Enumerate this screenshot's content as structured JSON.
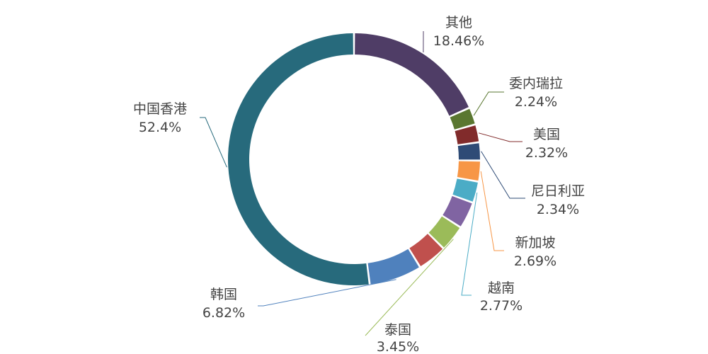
{
  "chart_data": {
    "type": "pie",
    "donut": true,
    "title": "",
    "start_angle_deg": 0,
    "direction": "clockwise",
    "slices": [
      {
        "label": "其他",
        "value": 18.46,
        "value_text": "18.46%",
        "color": "#4F3D66"
      },
      {
        "label": "委内瑞拉",
        "value": 2.24,
        "value_text": "2.24%",
        "color": "#5A7730"
      },
      {
        "label": "美国",
        "value": 2.32,
        "value_text": "2.32%",
        "color": "#812B2B"
      },
      {
        "label": "尼日利亚",
        "value": 2.34,
        "value_text": "2.34%",
        "color": "#2E4B76"
      },
      {
        "label": "新加坡",
        "value": 2.69,
        "value_text": "2.69%",
        "color": "#F79646"
      },
      {
        "label": "越南",
        "value": 2.77,
        "value_text": "2.77%",
        "color": "#4BACC6"
      },
      {
        "label": "",
        "value": 3.5,
        "value_text": "",
        "color": "#8064A2"
      },
      {
        "label": "泰国",
        "value": 3.45,
        "value_text": "3.45%",
        "color": "#9BBB59"
      },
      {
        "label": "",
        "value": 3.8,
        "value_text": "",
        "color": "#C0504D"
      },
      {
        "label": "韩国",
        "value": 6.82,
        "value_text": "6.82%",
        "color": "#4F81BD"
      },
      {
        "label": "中国香港",
        "value": 52.4,
        "value_text": "52.4%",
        "color": "#276A7C"
      }
    ]
  }
}
